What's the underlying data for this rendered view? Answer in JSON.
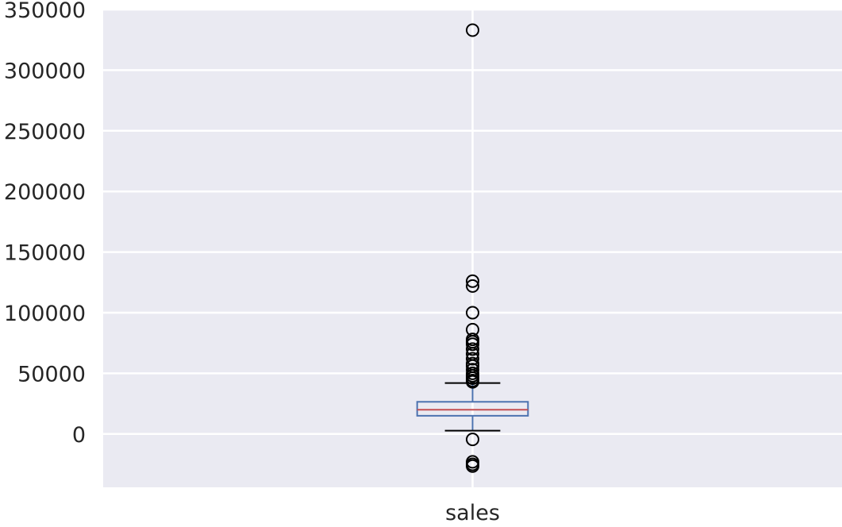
{
  "chart_data": {
    "type": "box",
    "categories": [
      "sales"
    ],
    "ylim": [
      -44000,
      350000
    ],
    "y_ticks": [
      0,
      50000,
      100000,
      150000,
      200000,
      250000,
      300000,
      350000
    ],
    "y_tick_labels": [
      "0",
      "50000",
      "100000",
      "150000",
      "200000",
      "250000",
      "300000",
      "350000"
    ],
    "grid": true,
    "series": [
      {
        "category": "sales",
        "whisker_low": 2700,
        "q1": 15000,
        "median": 20000,
        "q3": 26500,
        "whisker_high": 42000,
        "outliers": [
          333000,
          126000,
          122000,
          100000,
          86000,
          78000,
          76000,
          74000,
          70000,
          66000,
          62000,
          58000,
          56000,
          53000,
          50000,
          48000,
          46000,
          44000,
          43000,
          -4500,
          -23000,
          -25000,
          -26500
        ]
      }
    ]
  },
  "colors": {
    "plot_background": "#eaeaf2",
    "grid": "#ffffff",
    "box": "#4c72b0",
    "median": "#c44e52",
    "whisker_cap": "#000000",
    "outlier": "#000000",
    "text": "#262626"
  }
}
